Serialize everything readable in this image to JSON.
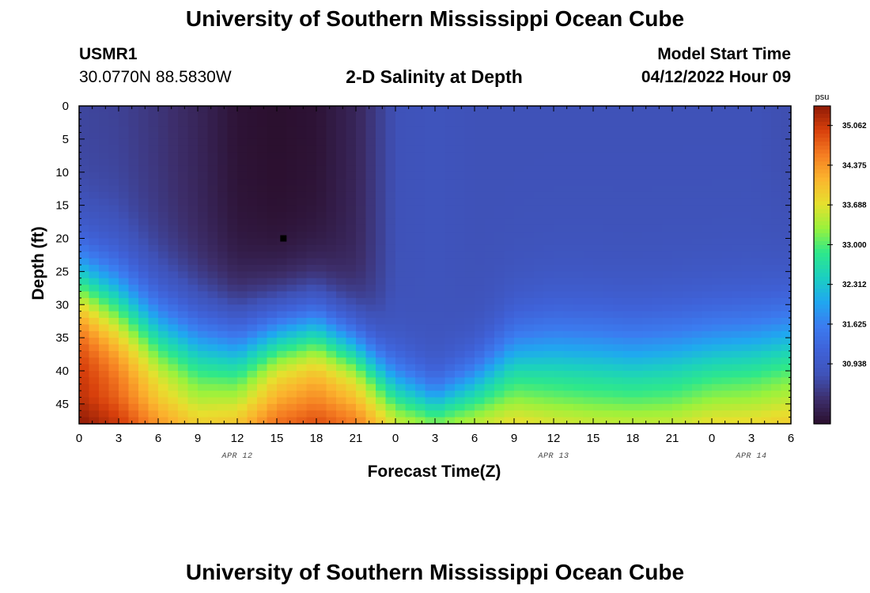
{
  "page": {
    "title_top": "University of Southern Mississippi Ocean Cube",
    "title_bottom": "University of Southern Mississippi Ocean Cube"
  },
  "header": {
    "station_id": "USMR1",
    "coords": "30.0770N  88.5830W",
    "plot_title": "2-D Salinity at Depth",
    "model_label": "Model Start Time",
    "model_time": "04/12/2022 Hour 09"
  },
  "colors": {
    "colormap": [
      "#2b0f2e",
      "#3d2e6b",
      "#3f52b8",
      "#3f62d8",
      "#3b7cf0",
      "#1fa8f0",
      "#1bd0c0",
      "#2ee88a",
      "#9af23c",
      "#e6e02e",
      "#fbb52e",
      "#f57d22",
      "#d8400c",
      "#8e1a06"
    ]
  },
  "chart_data": {
    "type": "heatmap",
    "title": "2-D Salinity at Depth",
    "xlabel": "Forecast Time(Z)",
    "ylabel": "Depth (ft)",
    "variable": "salinity",
    "units": "psu",
    "x_range_hours": [
      0,
      54
    ],
    "x_tick_labels": [
      "0",
      "3",
      "6",
      "9",
      "12",
      "15",
      "18",
      "21",
      "0",
      "3",
      "6",
      "9",
      "12",
      "15",
      "18",
      "21",
      "0",
      "3",
      "6"
    ],
    "date_labels": [
      {
        "label": "APR 12",
        "at_hour": 12
      },
      {
        "label": "APR 13",
        "at_hour": 36
      },
      {
        "label": "APR 14",
        "at_hour": 51
      }
    ],
    "y_range_ft": [
      0,
      48
    ],
    "y_tick_labels": [
      "0",
      "5",
      "10",
      "15",
      "20",
      "25",
      "30",
      "35",
      "40",
      "45"
    ],
    "colorbar_unit": "psu",
    "colorbar_ticks": [
      "35.062",
      "34.375",
      "33.688",
      "33.000",
      "32.312",
      "31.625",
      "30.938"
    ],
    "colorbar_tick_values": [
      35.062,
      34.375,
      33.688,
      33.0,
      32.312,
      31.625,
      30.938
    ],
    "color_min": 29.9,
    "color_max": 35.4,
    "marker": {
      "hour": 15.5,
      "depth_ft": 20
    },
    "profiles": {
      "time_hours": [
        0,
        3,
        6,
        9,
        12,
        15,
        18,
        21,
        24,
        27,
        30,
        33,
        36,
        39,
        42,
        45,
        48,
        51,
        54
      ],
      "surface_value": [
        30.6,
        30.55,
        30.4,
        30.2,
        29.95,
        29.9,
        29.95,
        30.2,
        30.75,
        30.8,
        30.75,
        30.75,
        30.75,
        30.75,
        30.75,
        30.75,
        30.75,
        30.75,
        30.7
      ],
      "deep_value": [
        35.2,
        34.9,
        34.3,
        33.9,
        34.1,
        34.6,
        34.8,
        34.5,
        33.7,
        33.5,
        33.6,
        33.8,
        33.7,
        33.6,
        33.6,
        33.6,
        33.8,
        33.8,
        33.9
      ],
      "halocline_depth_ft": [
        27,
        30,
        34,
        36,
        37,
        35,
        34,
        37,
        42,
        44.5,
        42,
        38.5,
        38,
        38,
        38.5,
        38,
        37.5,
        37,
        36
      ],
      "halocline_width_ft": [
        4,
        4.5,
        4.5,
        4.5,
        4.5,
        4,
        4,
        3.5,
        3,
        2.5,
        3,
        4,
        4.5,
        4.5,
        4.5,
        4.5,
        4.5,
        4.5,
        4.5
      ]
    }
  }
}
